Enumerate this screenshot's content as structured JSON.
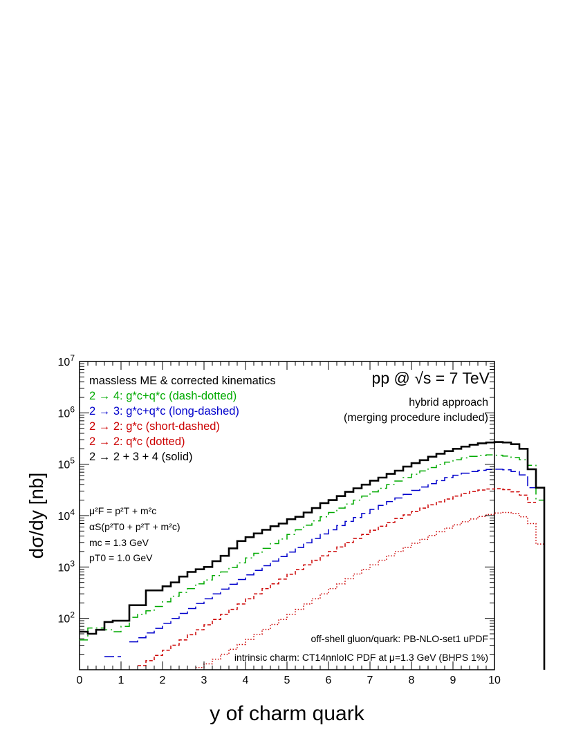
{
  "chart_data": {
    "type": "histogram",
    "xlabel": "y of charm quark",
    "ylabel": "dσ/dy   [nb]",
    "xlim": [
      0,
      10
    ],
    "ylim": [
      10,
      10000000
    ],
    "yscale": "log",
    "grid": false,
    "xticks": [
      "0",
      "1",
      "2",
      "3",
      "4",
      "5",
      "6",
      "7",
      "8",
      "9",
      "10"
    ],
    "bin_width": 0.2,
    "annotations": {
      "legend_title": "massless ME & corrected kinematics",
      "energy": "pp @ √s = 7 TeV",
      "approach_line1": "hybrid approach",
      "approach_line2": "(merging procedure included)",
      "params": [
        "μ²F = p²T + m²c",
        "αS(p²T0 + p²T + m²c)",
        "mc = 1.3 GeV",
        "pT0 = 1.0 GeV"
      ],
      "footer1": "off-shell gluon/quark: PB-NLO-set1 uPDF",
      "footer2": "intrinsic charm: CT14nnloIC PDF at μ=1.3 GeV (BHPS 1%)"
    },
    "series": [
      {
        "name": "2 → 4: g*c+q*c (dash-dotted)",
        "color": "#00aa00",
        "style": "dash-dotted",
        "values": [
          38,
          65,
          65,
          60,
          55,
          70,
          105,
          120,
          140,
          170,
          210,
          270,
          320,
          380,
          470,
          560,
          680,
          800,
          980,
          1200,
          1500,
          1850,
          2300,
          2850,
          3500,
          4300,
          5300,
          6500,
          7900,
          9500,
          11500,
          14000,
          16800,
          20000,
          24000,
          29000,
          34000,
          40000,
          47000,
          55000,
          64000,
          74000,
          86000,
          98000,
          110000,
          122000,
          133000,
          142000,
          148000,
          152000,
          150000,
          144000,
          135000,
          122000,
          95000,
          20000
        ]
      },
      {
        "name": "2 → 3: g*c+q*c (long-dashed)",
        "color": "#0000cc",
        "style": "long-dashed",
        "values": [
          null,
          null,
          null,
          18,
          18,
          null,
          35,
          42,
          52,
          64,
          80,
          100,
          125,
          155,
          195,
          240,
          300,
          370,
          460,
          570,
          700,
          860,
          1060,
          1300,
          1600,
          1950,
          2400,
          2950,
          3600,
          4400,
          5300,
          6400,
          7700,
          9200,
          11000,
          13200,
          15800,
          18800,
          22000,
          26000,
          31000,
          36000,
          42000,
          48000,
          55000,
          61000,
          67000,
          72000,
          76000,
          79000,
          80000,
          78000,
          72000,
          62000,
          35000,
          null
        ]
      },
      {
        "name": "2 → 2: g*c (short-dashed)",
        "color": "#cc0000",
        "style": "short-dashed",
        "values": [
          null,
          null,
          null,
          null,
          null,
          null,
          null,
          12,
          15,
          19,
          24,
          30,
          38,
          48,
          60,
          75,
          95,
          120,
          150,
          190,
          240,
          300,
          380,
          470,
          580,
          720,
          890,
          1100,
          1350,
          1650,
          2000,
          2450,
          3000,
          3600,
          4300,
          5200,
          6200,
          7400,
          8800,
          10300,
          12000,
          14000,
          16200,
          18500,
          21000,
          24000,
          27000,
          29500,
          31500,
          33000,
          33500,
          32000,
          29000,
          25000,
          18000,
          null
        ]
      },
      {
        "name": "2 → 2: q*c (dotted)",
        "color": "#cc0000",
        "style": "dotted",
        "values": [
          null,
          null,
          null,
          null,
          null,
          null,
          null,
          null,
          null,
          null,
          null,
          null,
          null,
          null,
          11,
          13,
          16,
          20,
          25,
          31,
          39,
          49,
          61,
          76,
          95,
          120,
          150,
          190,
          240,
          300,
          380,
          470,
          590,
          730,
          900,
          1100,
          1350,
          1650,
          2000,
          2400,
          2900,
          3450,
          4100,
          4850,
          5700,
          6600,
          7600,
          8600,
          9600,
          10500,
          11200,
          11500,
          11000,
          9500,
          7000,
          2800
        ]
      },
      {
        "name": "2 → 2 + 3 + 4 (solid)",
        "color": "#000000",
        "style": "solid",
        "values": [
          55,
          50,
          60,
          85,
          90,
          90,
          180,
          180,
          350,
          350,
          420,
          500,
          650,
          800,
          900,
          1000,
          1300,
          1650,
          2300,
          3200,
          3800,
          4500,
          5300,
          6200,
          7000,
          8500,
          9500,
          11500,
          14000,
          17500,
          20000,
          24000,
          29000,
          34000,
          40000,
          48000,
          55000,
          65000,
          75000,
          90000,
          105000,
          120000,
          140000,
          160000,
          180000,
          200000,
          220000,
          240000,
          255000,
          265000,
          270000,
          265000,
          245000,
          200000,
          80000,
          35000
        ]
      }
    ]
  }
}
